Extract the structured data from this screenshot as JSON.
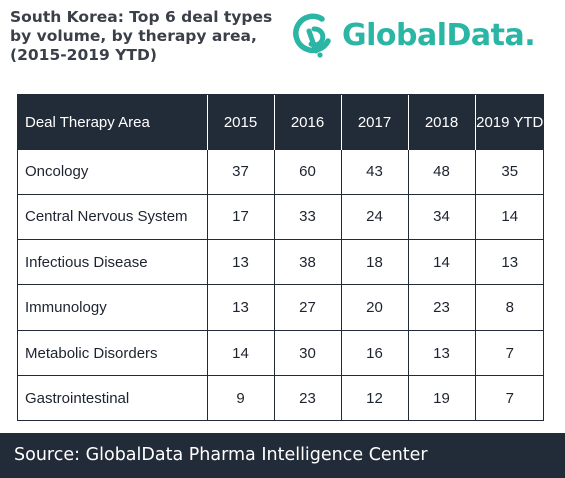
{
  "title_lines": [
    "South Korea: Top 6 deal types",
    "by volume, by therapy area,",
    "(2015-2019 YTD)"
  ],
  "logo": {
    "text": "GlobalData.",
    "color": "#2bb5a4",
    "icon": "globaldata-logo-icon"
  },
  "colors": {
    "header_bg": "#222b38",
    "footer_bg": "#222b38",
    "text": "#1d2430"
  },
  "chart_data": {
    "type": "table",
    "title": "South Korea: Top 6 deal types by volume, by therapy area, (2015-2019 YTD)",
    "columns": [
      "Deal Therapy Area",
      "2015",
      "2016",
      "2017",
      "2018",
      "2019 YTD"
    ],
    "rows": [
      {
        "area": "Oncology",
        "values": [
          37,
          60,
          43,
          48,
          35
        ]
      },
      {
        "area": "Central Nervous System",
        "values": [
          17,
          33,
          24,
          34,
          14
        ]
      },
      {
        "area": "Infectious Disease",
        "values": [
          13,
          38,
          18,
          14,
          13
        ]
      },
      {
        "area": "Immunology",
        "values": [
          13,
          27,
          20,
          23,
          8
        ]
      },
      {
        "area": "Metabolic Disorders",
        "values": [
          14,
          30,
          16,
          13,
          7
        ]
      },
      {
        "area": "Gastrointestinal",
        "values": [
          9,
          23,
          12,
          19,
          7
        ]
      }
    ]
  },
  "source": "Source: GlobalData Pharma Intelligence Center"
}
